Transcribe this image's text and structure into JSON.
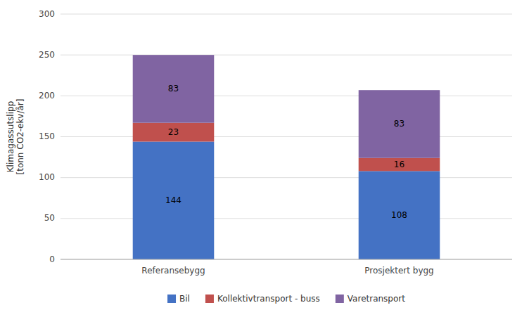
{
  "chart_data": {
    "type": "bar",
    "stacked": true,
    "categories": [
      "Referansebygg",
      "Prosjektert bygg"
    ],
    "series": [
      {
        "name": "Bil",
        "color": "#4472C4",
        "values": [
          144,
          108
        ]
      },
      {
        "name": "Kollektivtransport - buss",
        "color": "#C0504D",
        "values": [
          23,
          16
        ]
      },
      {
        "name": "Varetransport",
        "color": "#8064A2",
        "values": [
          83,
          83
        ]
      }
    ],
    "ylabel": "Klimagassutslipp\n[tonn CO2-ekv/år]",
    "ylim": [
      0,
      300
    ],
    "yticks": [
      0,
      50,
      100,
      150,
      200,
      250,
      300
    ],
    "grid": true,
    "data_labels": true,
    "legend": "bottom"
  }
}
